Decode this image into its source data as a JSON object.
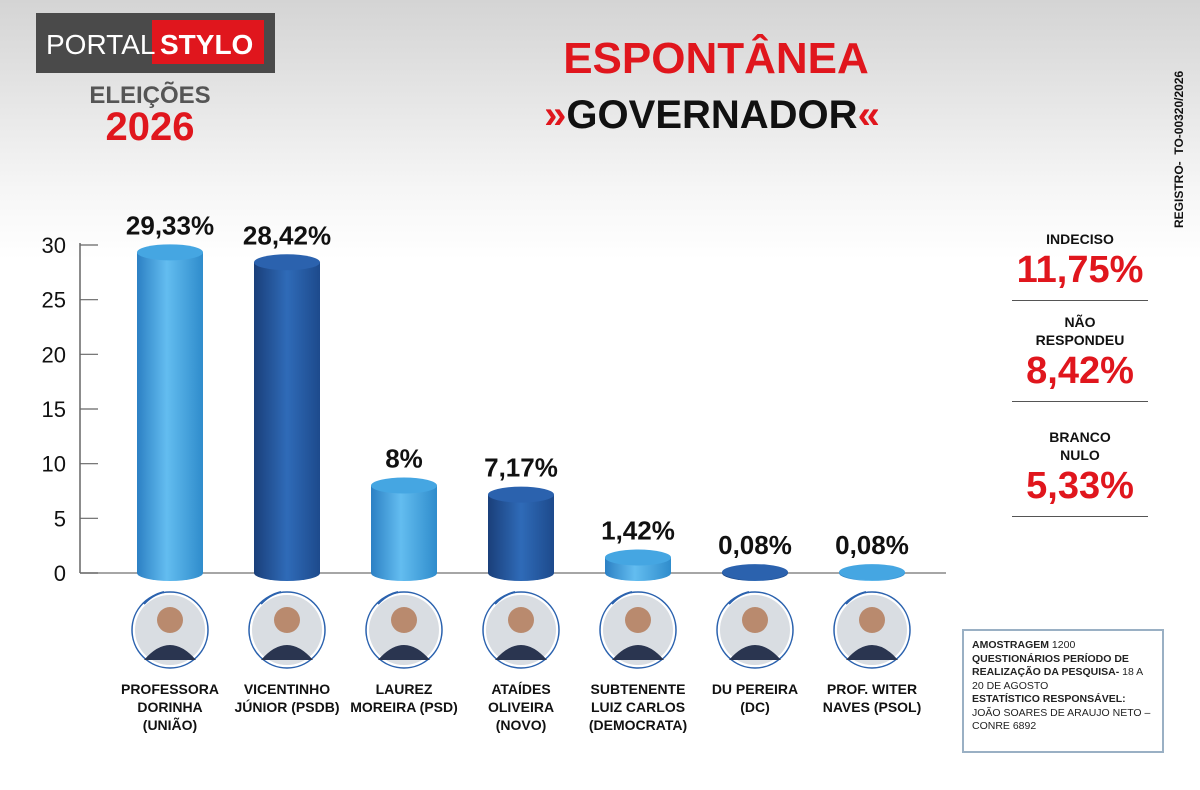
{
  "header": {
    "brand_left": "PORTAL",
    "brand_right": "STYLO",
    "election": "ELEIÇÕES",
    "year": "2026"
  },
  "registration": "REGISTRO-  TO-00320/2026",
  "chart_data": {
    "type": "bar",
    "title": "ESPONTÂNEA",
    "subtitle": "»GOVERNADOR«",
    "categories": [
      "PROFESSORA DORINHA (UNIÃO)",
      "VICENTINHO JÚNIOR (PSDB)",
      "LAUREZ MOREIRA (PSD)",
      "ATAÍDES OLIVEIRA (NOVO)",
      "SUBTENENTE LUIZ CARLOS (DEMOCRATA)",
      "DU PEREIRA (DC)",
      "PROF. WITER NAVES (PSOL)"
    ],
    "values": [
      29.33,
      28.42,
      8,
      7.17,
      1.42,
      0.08,
      0.08
    ],
    "value_labels": [
      "29,33%",
      "28,42%",
      "8%",
      "7,17%",
      "1,42%",
      "0,08%",
      "0,08%"
    ],
    "colors": [
      "#45a6e2",
      "#2b62ae",
      "#45a6e2",
      "#2b62ae",
      "#45a6e2",
      "#2b62ae",
      "#45a6e2"
    ],
    "ylim": [
      0,
      30
    ],
    "yticks": [
      0,
      5,
      10,
      15,
      20,
      25,
      30
    ]
  },
  "side_stats": [
    {
      "label": "INDECISO",
      "value_label": "11,75%"
    },
    {
      "label": "NÃO RESPONDEU",
      "value_label": "8,42%"
    },
    {
      "label": "BRANCO NULO",
      "value_label": "5,33%"
    }
  ],
  "methodology": [
    {
      "label": "AMOSTRAGEM",
      "text": "1200"
    },
    {
      "label": "QUESTIONÁRIOS PERÍODO DE REALIZAÇÃO DA PESQUISA-",
      "text": "18 A 20 DE AGOSTO"
    },
    {
      "label": "ESTATÍSTICO RESPONSÁVEL:",
      "text": "JOÃO SOARES DE ARAUJO NETO – CONRE 6892"
    }
  ]
}
